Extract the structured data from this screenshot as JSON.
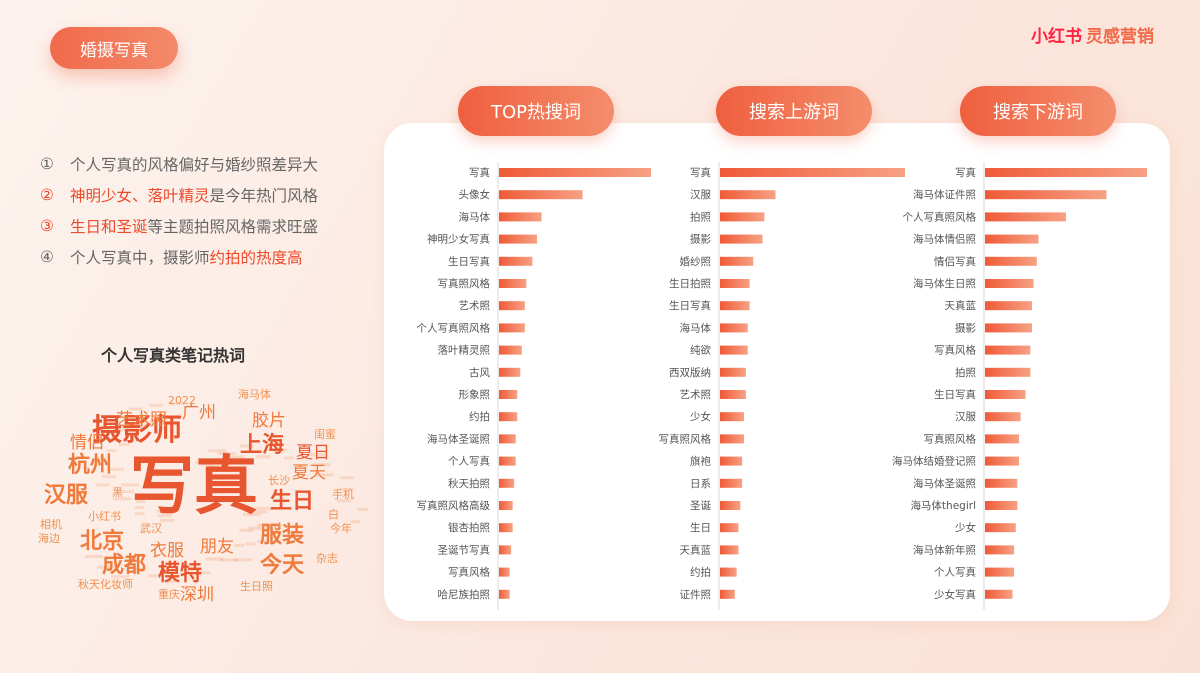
{
  "tag_label": "婚摄写真",
  "brand": {
    "part1": "小红书",
    "part2": "灵感营销"
  },
  "bullets": [
    {
      "num": "①",
      "segments": [
        {
          "text": "个人写真的风格偏好与婚纱照差异大",
          "hl": false
        }
      ]
    },
    {
      "num": "②",
      "segments": [
        {
          "text": "神明少女、落叶精灵",
          "hl": true
        },
        {
          "text": "是今年热门风格",
          "hl": false
        }
      ]
    },
    {
      "num": "③",
      "segments": [
        {
          "text": "生日和圣诞",
          "hl": true
        },
        {
          "text": "等主题拍照风格需求旺盛",
          "hl": false
        }
      ]
    },
    {
      "num": "④",
      "segments": [
        {
          "text": "个人写真中，摄影师",
          "hl": false
        },
        {
          "text": "约拍的热度高",
          "hl": true
        }
      ]
    }
  ],
  "cloud_title": "个人写真类笔记热词",
  "wordcloud": [
    {
      "t": "写真",
      "s": 5,
      "c": "#e8562f"
    },
    {
      "t": "摄影师",
      "s": 4,
      "c": "#e8562f"
    },
    {
      "t": "上海",
      "s": 3,
      "c": "#e8562f"
    },
    {
      "t": "汉服",
      "s": 3,
      "c": "#ef7a3c"
    },
    {
      "t": "北京",
      "s": 3,
      "c": "#ef7a3c"
    },
    {
      "t": "杭州",
      "s": 3,
      "c": "#ef7a3c"
    },
    {
      "t": "生日",
      "s": 3,
      "c": "#e8562f"
    },
    {
      "t": "服装",
      "s": 3,
      "c": "#ef7a3c"
    },
    {
      "t": "模特",
      "s": 3,
      "c": "#e8562f"
    },
    {
      "t": "成都",
      "s": 3,
      "c": "#ef7a3c"
    },
    {
      "t": "今天",
      "s": 3,
      "c": "#ef7a3c"
    },
    {
      "t": "艺术照",
      "s": 2,
      "c": "#ef7a3c"
    },
    {
      "t": "广州",
      "s": 2,
      "c": "#ef7a3c"
    },
    {
      "t": "胶片",
      "s": 2,
      "c": "#ef7a3c"
    },
    {
      "t": "夏日",
      "s": 2,
      "c": "#e8562f"
    },
    {
      "t": "夏天",
      "s": 2,
      "c": "#ef7a3c"
    },
    {
      "t": "情侣",
      "s": 2,
      "c": "#ef7a3c"
    },
    {
      "t": "朋友",
      "s": 2,
      "c": "#ef7a3c"
    },
    {
      "t": "衣服",
      "s": 2,
      "c": "#ef7a3c"
    },
    {
      "t": "深圳",
      "s": 2,
      "c": "#ef7a3c"
    },
    {
      "t": "相机",
      "s": 1,
      "c": "#f09050"
    },
    {
      "t": "小红书",
      "s": 1,
      "c": "#f09050"
    },
    {
      "t": "重庆",
      "s": 1,
      "c": "#f09050"
    },
    {
      "t": "长沙",
      "s": 1,
      "c": "#f09050"
    },
    {
      "t": "手机",
      "s": 1,
      "c": "#f09050"
    },
    {
      "t": "生日照",
      "s": 1,
      "c": "#f09050"
    },
    {
      "t": "秋天",
      "s": 1,
      "c": "#f09050"
    },
    {
      "t": "武汉",
      "s": 1,
      "c": "#f09050"
    },
    {
      "t": "杂志",
      "s": 1,
      "c": "#f09050"
    },
    {
      "t": "化妆师",
      "s": 1,
      "c": "#f09050"
    },
    {
      "t": "闺蜜",
      "s": 1,
      "c": "#f09050"
    },
    {
      "t": "2022",
      "s": 1,
      "c": "#f09050"
    },
    {
      "t": "今年",
      "s": 1,
      "c": "#f09050"
    },
    {
      "t": "白",
      "s": 1,
      "c": "#f09050"
    },
    {
      "t": "黑",
      "s": 1,
      "c": "#f09050"
    },
    {
      "t": "ccd",
      "s": 1,
      "c": "#f09050"
    },
    {
      "t": "海马体",
      "s": 1,
      "c": "#f09050"
    },
    {
      "t": "海边",
      "s": 1,
      "c": "#f09050"
    }
  ],
  "chart_data": [
    {
      "type": "bar",
      "title": "TOP热搜词",
      "categories": [
        "写真",
        "头像女",
        "海马体",
        "神明少女写真",
        "生日写真",
        "写真照风格",
        "艺术照",
        "个人写真照风格",
        "落叶精灵照",
        "古风",
        "形象照",
        "约拍",
        "海马体圣诞照",
        "个人写真",
        "秋天拍照",
        "写真照风格高级",
        "银杏拍照",
        "圣诞节写真",
        "写真风格",
        "哈尼族拍照"
      ],
      "values": [
        100,
        55,
        28,
        25,
        22,
        18,
        17,
        17,
        15,
        14,
        12,
        12,
        11,
        11,
        10,
        9,
        9,
        8,
        7,
        7
      ],
      "xlim": [
        0,
        100
      ]
    },
    {
      "type": "bar",
      "title": "搜索上游词",
      "categories": [
        "写真",
        "汉服",
        "拍照",
        "摄影",
        "婚纱照",
        "生日拍照",
        "生日写真",
        "海马体",
        "纯欲",
        "西双版纳",
        "艺术照",
        "少女",
        "写真照风格",
        "旗袍",
        "日系",
        "圣诞",
        "生日",
        "天真蓝",
        "约拍",
        "证件照"
      ],
      "values": [
        100,
        30,
        24,
        23,
        18,
        16,
        16,
        15,
        15,
        14,
        14,
        13,
        13,
        12,
        12,
        11,
        10,
        10,
        9,
        8
      ],
      "xlim": [
        0,
        100
      ]
    },
    {
      "type": "bar",
      "title": "搜索下游词",
      "categories": [
        "写真",
        "海马体证件照",
        "个人写真照风格",
        "海马体情侣照",
        "情侣写真",
        "海马体生日照",
        "天真蓝",
        "摄影",
        "写真风格",
        "拍照",
        "生日写真",
        "汉服",
        "写真照风格",
        "海马体结婚登记照",
        "海马体圣诞照",
        "海马体thegirl",
        "少女",
        "海马体新年照",
        "个人写真",
        "少女写真"
      ],
      "values": [
        100,
        75,
        50,
        33,
        32,
        30,
        29,
        29,
        28,
        28,
        25,
        22,
        21,
        21,
        20,
        20,
        19,
        18,
        18,
        17
      ],
      "xlim": [
        0,
        100
      ]
    }
  ]
}
